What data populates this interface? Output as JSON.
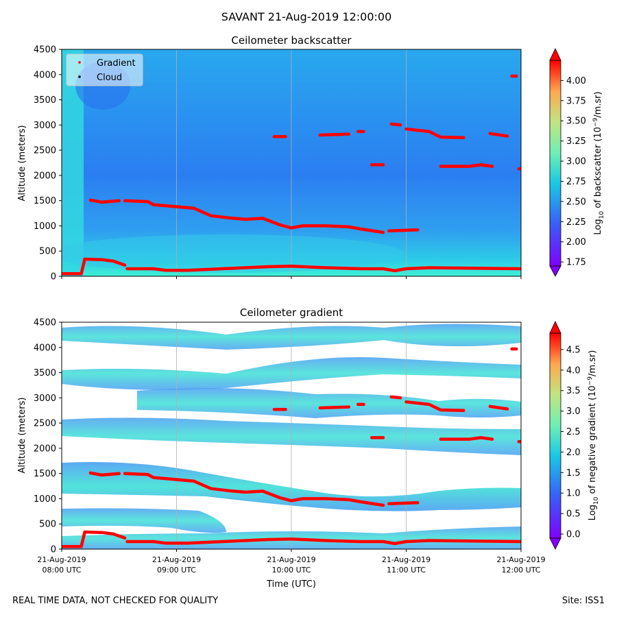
{
  "suptitle": "SAVANT 21-Aug-2019 12:00:00",
  "footer": {
    "left": "REAL TIME DATA, NOT CHECKED FOR QUALITY",
    "right": "Site: ISS1"
  },
  "chart_data": [
    {
      "type": "heatmap",
      "title": "Ceilometer backscatter",
      "xlabel": "",
      "ylabel": "Altitude (meters)",
      "xlim_hours": [
        8,
        12
      ],
      "ylim": [
        0,
        4500
      ],
      "yticks": [
        "0",
        "500",
        "1000",
        "1500",
        "2000",
        "2500",
        "3000",
        "3500",
        "4000",
        "4500"
      ],
      "grid_vertical": true,
      "colormap": "rainbow",
      "colorbar": {
        "label": "Log10 of backscatter (10^-9/m.sr)",
        "label_parts": {
          "pre": "Log",
          "sub": "10",
          "mid": " of backscatter (10",
          "sup": "−9",
          "post": "/m.sr)"
        },
        "range": [
          1.7,
          4.25
        ],
        "ticks": [
          "1.75",
          "2.00",
          "2.25",
          "2.50",
          "2.75",
          "3.00",
          "3.25",
          "3.50",
          "3.75",
          "4.00"
        ],
        "tick_values": [
          1.75,
          2.0,
          2.25,
          2.5,
          2.75,
          3.0,
          3.25,
          3.5,
          3.75,
          4.0
        ]
      },
      "legend": {
        "placement": "top-left",
        "entries": [
          {
            "label": "Gradient",
            "color": "#ff0000"
          },
          {
            "label": "Cloud",
            "color": "#000000"
          }
        ]
      }
    },
    {
      "type": "heatmap",
      "title": "Ceilometer gradient",
      "xlabel": "Time (UTC)",
      "ylabel": "Altitude (meters)",
      "xlim_hours": [
        8,
        12
      ],
      "ylim": [
        0,
        4500
      ],
      "yticks": [
        "0",
        "500",
        "1000",
        "1500",
        "2000",
        "2500",
        "3000",
        "3500",
        "4000",
        "4500"
      ],
      "xticks": [
        {
          "hour": 8,
          "line1": "21-Aug-2019",
          "line2": "08:00 UTC"
        },
        {
          "hour": 9,
          "line1": "21-Aug-2019",
          "line2": "09:00 UTC"
        },
        {
          "hour": 10,
          "line1": "21-Aug-2019",
          "line2": "10:00 UTC"
        },
        {
          "hour": 11,
          "line1": "21-Aug-2019",
          "line2": "11:00 UTC"
        },
        {
          "hour": 12,
          "line1": "21-Aug-2019",
          "line2": "12:00 UTC"
        }
      ],
      "grid_vertical": true,
      "colormap": "rainbow",
      "colorbar": {
        "label": "Log10 of negative gradient (10^-9/m.sr)",
        "label_parts": {
          "pre": "Log",
          "sub": "10",
          "mid": " of negative gradient (10",
          "sup": "−9",
          "post": "/m.sr)"
        },
        "range": [
          -0.1,
          4.9
        ],
        "ticks": [
          "0.0",
          "0.5",
          "1.0",
          "1.5",
          "2.0",
          "2.5",
          "3.0",
          "3.5",
          "4.0",
          "4.5"
        ],
        "tick_values": [
          0.0,
          0.5,
          1.0,
          1.5,
          2.0,
          2.5,
          3.0,
          3.5,
          4.0,
          4.5
        ]
      }
    }
  ],
  "gradient_series": {
    "name": "Gradient",
    "color": "#ff0000",
    "segments": [
      {
        "t": [
          8.0,
          8.17,
          8.2
        ],
        "alt": [
          50,
          50,
          330
        ]
      },
      {
        "t": [
          8.2,
          8.35,
          8.45,
          8.55
        ],
        "alt": [
          340,
          330,
          300,
          220
        ]
      },
      {
        "t": [
          8.57,
          8.8,
          8.9,
          9.1,
          9.4,
          9.6,
          9.8,
          10.0,
          10.3,
          10.6,
          10.8,
          10.9,
          11.0,
          11.2,
          11.6,
          12.0
        ],
        "alt": [
          150,
          150,
          120,
          120,
          150,
          170,
          190,
          200,
          170,
          150,
          150,
          110,
          150,
          170,
          160,
          150
        ]
      },
      {
        "t": [
          8.25,
          8.35,
          8.5
        ],
        "alt": [
          1510,
          1470,
          1500
        ]
      },
      {
        "t": [
          8.55,
          8.75,
          8.8,
          9.0,
          9.15,
          9.3,
          9.45,
          9.6,
          9.75,
          9.9,
          10.0,
          10.1,
          10.3,
          10.5,
          10.6,
          10.8
        ],
        "alt": [
          1500,
          1480,
          1420,
          1380,
          1350,
          1200,
          1160,
          1130,
          1150,
          1020,
          960,
          1000,
          1000,
          980,
          940,
          870
        ]
      },
      {
        "t": [
          10.85,
          11.1
        ],
        "alt": [
          900,
          920
        ]
      },
      {
        "t": [
          9.85,
          9.95
        ],
        "alt": [
          2770,
          2770
        ]
      },
      {
        "t": [
          10.25,
          10.5
        ],
        "alt": [
          2800,
          2820
        ]
      },
      {
        "t": [
          10.58,
          10.63
        ],
        "alt": [
          2870,
          2870
        ]
      },
      {
        "t": [
          10.87,
          10.95
        ],
        "alt": [
          3020,
          3000
        ]
      },
      {
        "t": [
          10.7,
          10.8
        ],
        "alt": [
          2210,
          2210
        ]
      },
      {
        "t": [
          11.0,
          11.2,
          11.3,
          11.5
        ],
        "alt": [
          2920,
          2870,
          2760,
          2750
        ]
      },
      {
        "t": [
          11.3,
          11.55,
          11.65,
          11.75
        ],
        "alt": [
          2180,
          2180,
          2210,
          2180
        ]
      },
      {
        "t": [
          11.73,
          11.88
        ],
        "alt": [
          2830,
          2780
        ]
      },
      {
        "t": [
          11.92,
          11.96
        ],
        "alt": [
          3970,
          3970
        ]
      },
      {
        "t": [
          11.98,
          12.0
        ],
        "alt": [
          2130,
          2130
        ]
      }
    ]
  }
}
